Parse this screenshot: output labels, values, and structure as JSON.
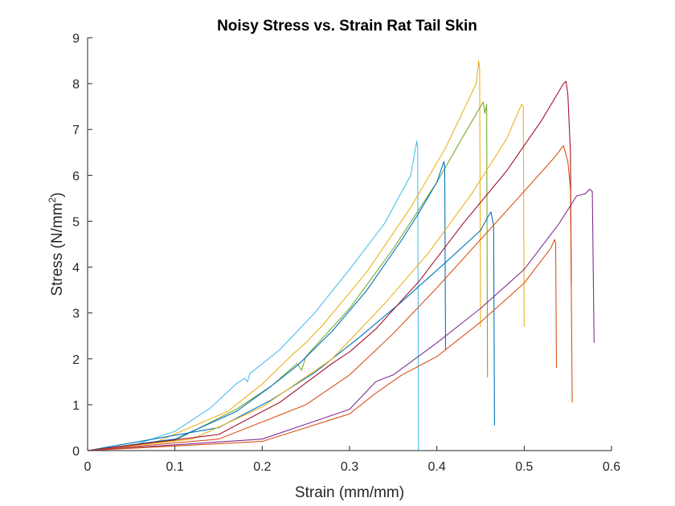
{
  "chart_data": {
    "type": "line",
    "title": "Noisy Stress vs. Strain Rat Tail Skin",
    "xlabel": "Strain (mm/mm)",
    "ylabel_main": "Stress (N/mm",
    "ylabel_sup": "2",
    "ylabel_close": ")",
    "xlim": [
      0,
      0.6
    ],
    "ylim": [
      0,
      9
    ],
    "xticks": [
      0,
      0.1,
      0.2,
      0.3,
      0.4,
      0.5,
      0.6
    ],
    "xtick_labels": [
      "0",
      "0.1",
      "0.2",
      "0.3",
      "0.4",
      "0.5",
      "0.6"
    ],
    "yticks": [
      0,
      1,
      2,
      3,
      4,
      5,
      6,
      7,
      8,
      9
    ],
    "ytick_labels": [
      "0",
      "1",
      "2",
      "3",
      "4",
      "5",
      "6",
      "7",
      "8",
      "9"
    ],
    "grid": false,
    "legend": "none",
    "series": [
      {
        "color": "#4DBEEE",
        "points": [
          [
            0.0,
            0.0
          ],
          [
            0.05,
            0.1
          ],
          [
            0.1,
            0.42
          ],
          [
            0.14,
            0.92
          ],
          [
            0.17,
            1.45
          ],
          [
            0.18,
            1.58
          ],
          [
            0.183,
            1.5
          ],
          [
            0.186,
            1.68
          ],
          [
            0.22,
            2.2
          ],
          [
            0.26,
            3.0
          ],
          [
            0.3,
            3.95
          ],
          [
            0.34,
            4.95
          ],
          [
            0.37,
            6.0
          ],
          [
            0.377,
            6.75
          ],
          [
            0.378,
            6.6
          ],
          [
            0.379,
            0.0
          ]
        ]
      },
      {
        "color": "#EDB120",
        "points": [
          [
            0.0,
            0.0
          ],
          [
            0.08,
            0.2
          ],
          [
            0.16,
            0.85
          ],
          [
            0.2,
            1.45
          ],
          [
            0.235,
            2.1
          ],
          [
            0.25,
            2.35
          ],
          [
            0.27,
            2.75
          ],
          [
            0.32,
            3.9
          ],
          [
            0.37,
            5.3
          ],
          [
            0.41,
            6.6
          ],
          [
            0.445,
            8.0
          ],
          [
            0.448,
            8.5
          ],
          [
            0.449,
            8.3
          ],
          [
            0.45,
            2.7
          ]
        ]
      },
      {
        "color": "#77AC30",
        "points": [
          [
            0.0,
            0.0
          ],
          [
            0.1,
            0.22
          ],
          [
            0.17,
            0.9
          ],
          [
            0.21,
            1.4
          ],
          [
            0.24,
            1.9
          ],
          [
            0.245,
            1.75
          ],
          [
            0.25,
            2.05
          ],
          [
            0.3,
            3.1
          ],
          [
            0.35,
            4.4
          ],
          [
            0.4,
            5.85
          ],
          [
            0.43,
            6.85
          ],
          [
            0.45,
            7.5
          ],
          [
            0.453,
            7.6
          ],
          [
            0.455,
            7.35
          ],
          [
            0.457,
            7.55
          ],
          [
            0.458,
            1.6
          ]
        ]
      },
      {
        "color": "#0072BD",
        "points": [
          [
            0.0,
            0.0
          ],
          [
            0.1,
            0.25
          ],
          [
            0.17,
            0.85
          ],
          [
            0.21,
            1.4
          ],
          [
            0.24,
            1.85
          ],
          [
            0.28,
            2.6
          ],
          [
            0.32,
            3.5
          ],
          [
            0.36,
            4.6
          ],
          [
            0.38,
            5.2
          ],
          [
            0.4,
            5.85
          ],
          [
            0.408,
            6.3
          ],
          [
            0.409,
            6.2
          ],
          [
            0.41,
            2.2
          ]
        ]
      },
      {
        "color": "#0072BD",
        "points": [
          [
            0.0,
            0.0
          ],
          [
            0.15,
            0.5
          ],
          [
            0.21,
            1.1
          ],
          [
            0.26,
            1.7
          ],
          [
            0.31,
            2.45
          ],
          [
            0.36,
            3.25
          ],
          [
            0.41,
            4.1
          ],
          [
            0.45,
            4.8
          ],
          [
            0.46,
            5.15
          ],
          [
            0.462,
            5.2
          ],
          [
            0.465,
            4.9
          ],
          [
            0.466,
            0.55
          ]
        ]
      },
      {
        "color": "#EDB120",
        "points": [
          [
            0.0,
            0.0
          ],
          [
            0.12,
            0.25
          ],
          [
            0.2,
            0.95
          ],
          [
            0.28,
            2.0
          ],
          [
            0.34,
            3.2
          ],
          [
            0.39,
            4.3
          ],
          [
            0.44,
            5.6
          ],
          [
            0.48,
            6.8
          ],
          [
            0.497,
            7.55
          ],
          [
            0.499,
            7.5
          ],
          [
            0.5,
            2.7
          ]
        ]
      },
      {
        "color": "#A2142F",
        "points": [
          [
            0.0,
            0.0
          ],
          [
            0.15,
            0.35
          ],
          [
            0.22,
            1.05
          ],
          [
            0.28,
            1.9
          ],
          [
            0.3,
            2.15
          ],
          [
            0.33,
            2.65
          ],
          [
            0.38,
            3.7
          ],
          [
            0.43,
            4.95
          ],
          [
            0.48,
            6.1
          ],
          [
            0.52,
            7.2
          ],
          [
            0.545,
            8.0
          ],
          [
            0.548,
            8.05
          ],
          [
            0.55,
            7.75
          ],
          [
            0.553,
            6.5
          ],
          [
            0.554,
            3.6
          ]
        ]
      },
      {
        "color": "#D95319",
        "points": [
          [
            0.0,
            0.0
          ],
          [
            0.15,
            0.25
          ],
          [
            0.25,
            1.0
          ],
          [
            0.3,
            1.65
          ],
          [
            0.35,
            2.55
          ],
          [
            0.4,
            3.55
          ],
          [
            0.45,
            4.6
          ],
          [
            0.5,
            5.65
          ],
          [
            0.535,
            6.4
          ],
          [
            0.545,
            6.65
          ],
          [
            0.55,
            6.3
          ],
          [
            0.553,
            5.7
          ],
          [
            0.555,
            1.05
          ]
        ]
      },
      {
        "color": "#7E2F8E",
        "points": [
          [
            0.0,
            0.0
          ],
          [
            0.2,
            0.25
          ],
          [
            0.3,
            0.9
          ],
          [
            0.33,
            1.5
          ],
          [
            0.35,
            1.65
          ],
          [
            0.4,
            2.35
          ],
          [
            0.45,
            3.1
          ],
          [
            0.5,
            3.95
          ],
          [
            0.54,
            4.95
          ],
          [
            0.56,
            5.55
          ],
          [
            0.57,
            5.6
          ],
          [
            0.575,
            5.7
          ],
          [
            0.578,
            5.65
          ],
          [
            0.58,
            2.35
          ]
        ]
      },
      {
        "color": "#D95319",
        "points": [
          [
            0.0,
            0.0
          ],
          [
            0.2,
            0.2
          ],
          [
            0.3,
            0.8
          ],
          [
            0.33,
            1.25
          ],
          [
            0.36,
            1.65
          ],
          [
            0.4,
            2.05
          ],
          [
            0.45,
            2.8
          ],
          [
            0.5,
            3.65
          ],
          [
            0.53,
            4.4
          ],
          [
            0.535,
            4.6
          ],
          [
            0.536,
            4.5
          ],
          [
            0.537,
            1.8
          ]
        ]
      }
    ]
  }
}
